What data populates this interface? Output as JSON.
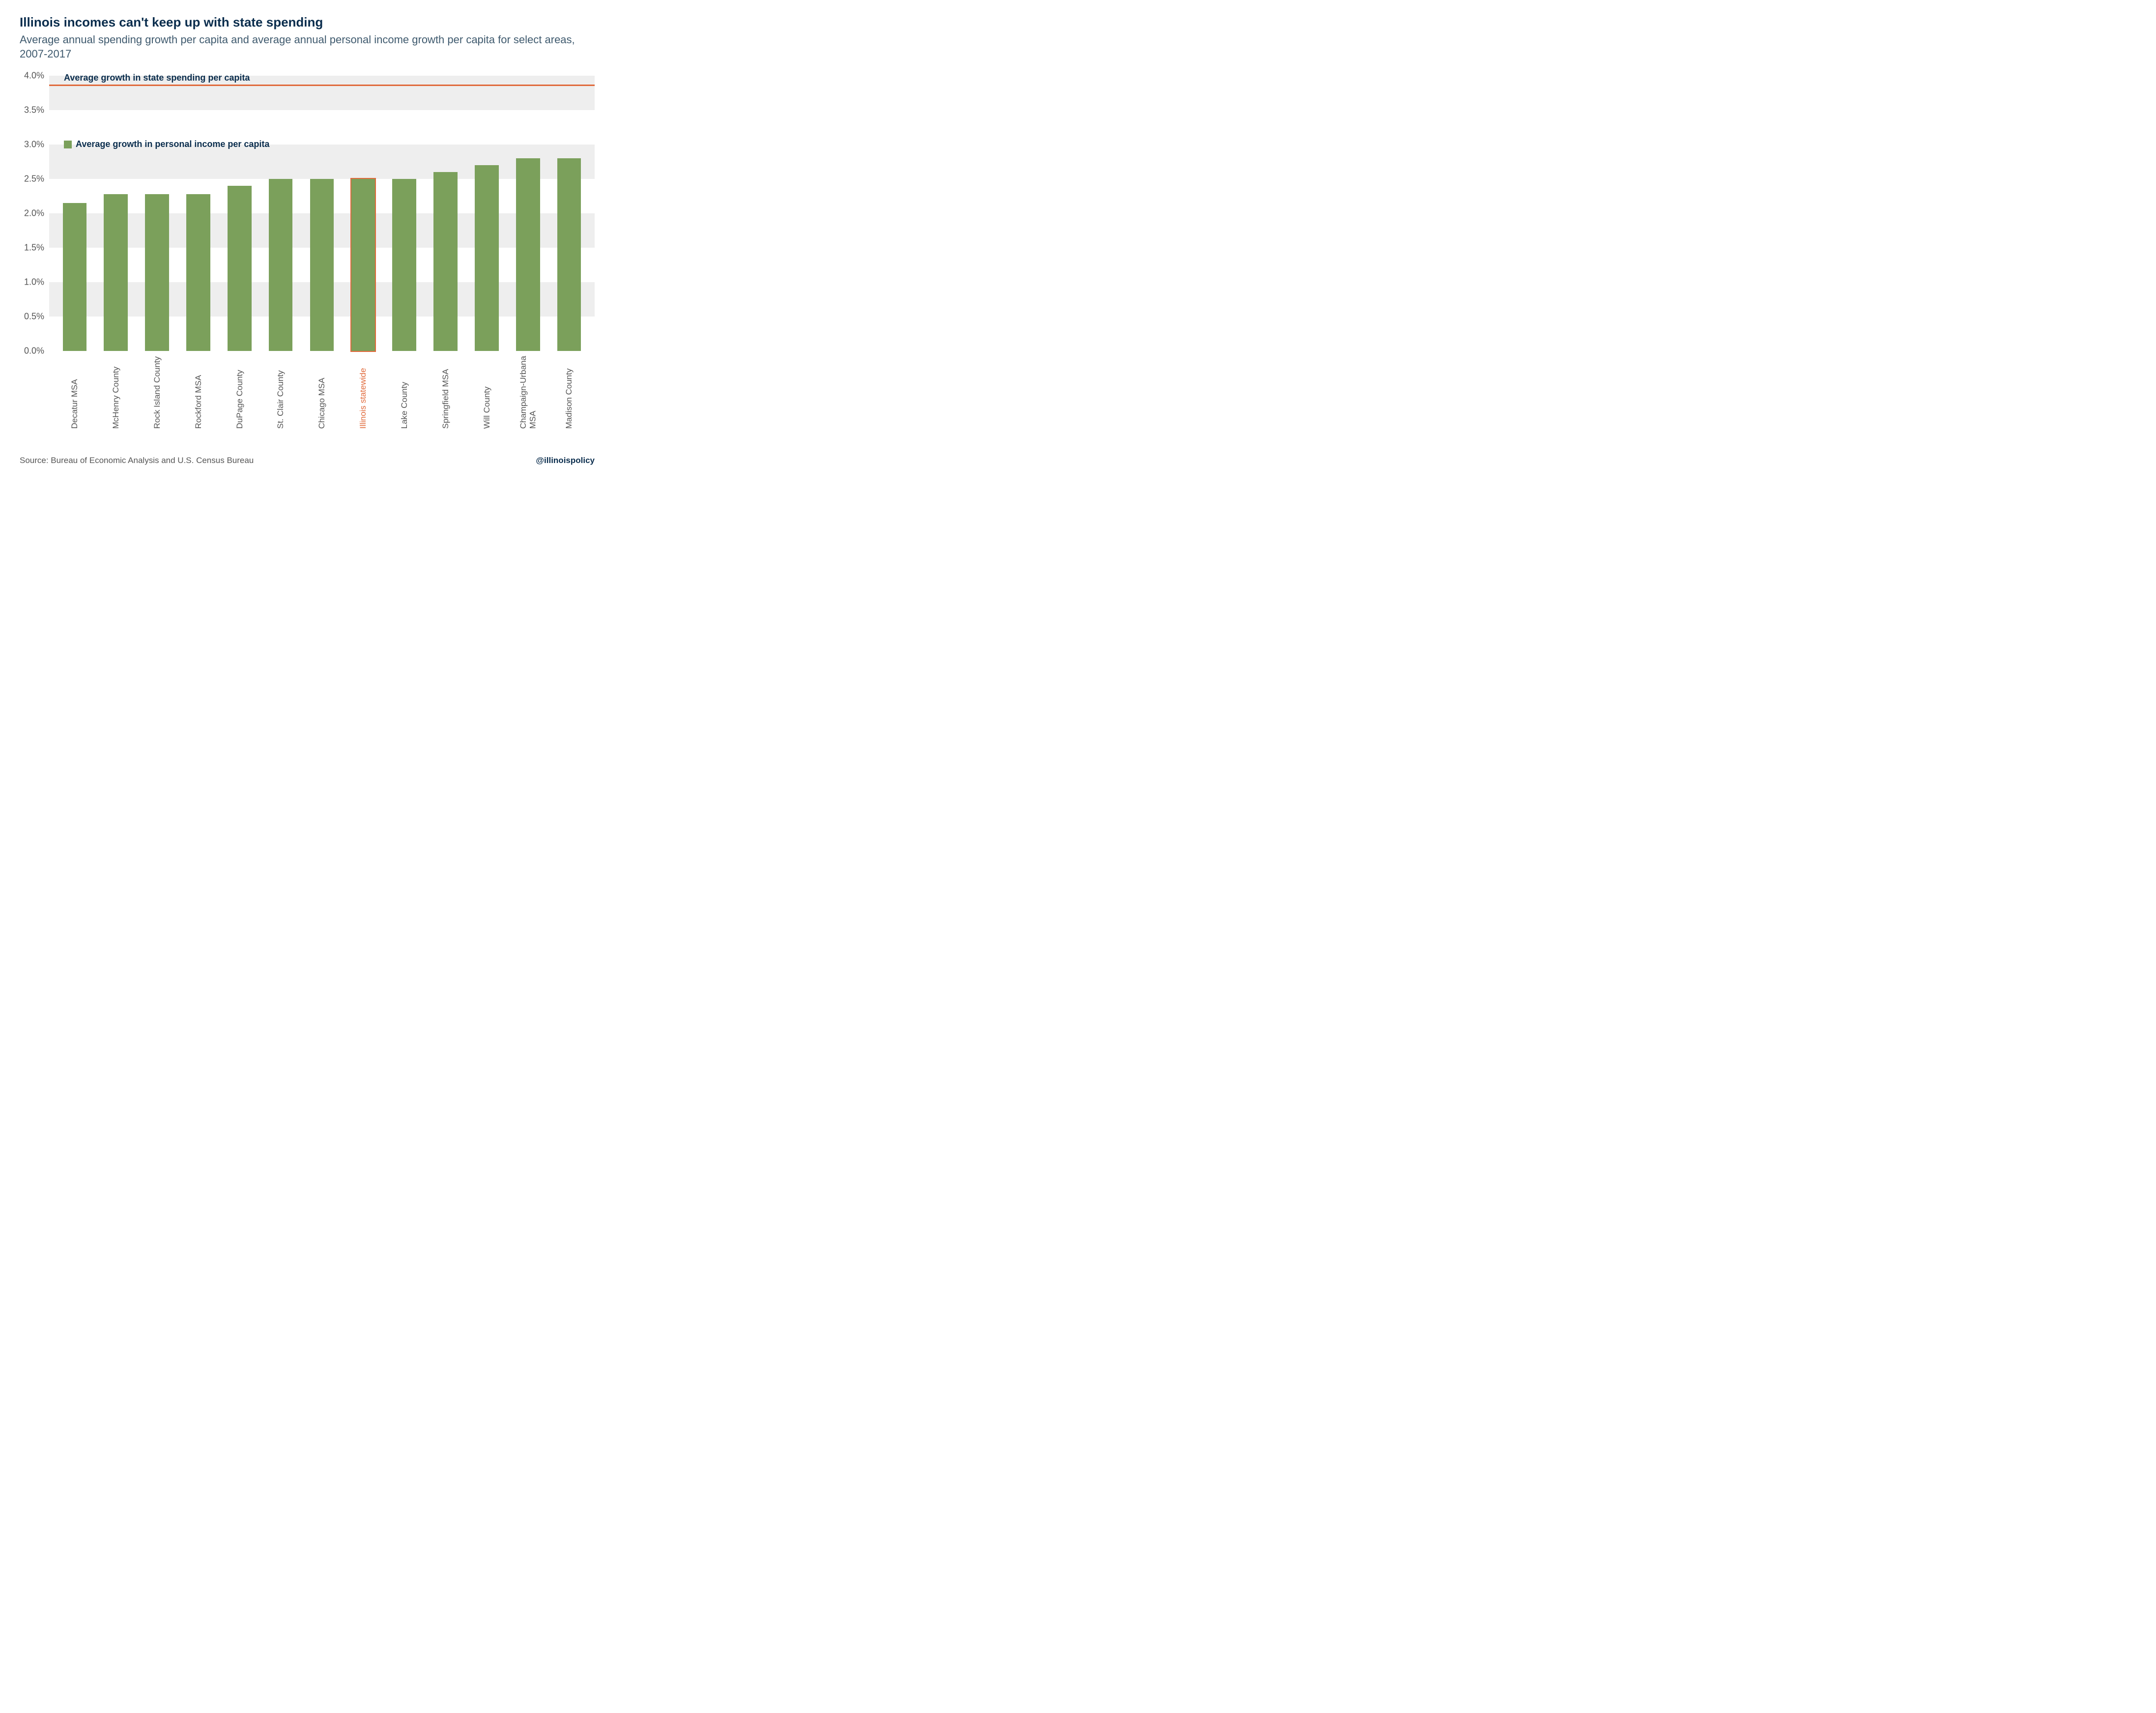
{
  "title": "Illinois incomes can't keep up with state spending",
  "subtitle": "Average annual spending growth per capita and average annual personal income growth per capita for select areas, 2007-2017",
  "colors": {
    "title": "#0a2d4d",
    "subtitle": "#3f5a6e",
    "bar": "#7ba05b",
    "highlight_border": "#e06a3b",
    "highlight_label": "#e06a3b",
    "refline": "#e06a3b",
    "band": "#eeeeee",
    "xlabel": "#555555",
    "footer": "#555555",
    "attribution": "#0a2d4d"
  },
  "chart": {
    "type": "bar",
    "ymin": 0.0,
    "ymax": 4.0,
    "ytick_step": 0.5,
    "ytick_format_pct": true,
    "reference_line": {
      "value": 3.85,
      "label": "Average growth in state spending per capita"
    },
    "legend_label": "Average growth in personal income per capita",
    "categories": [
      {
        "label": "Decatur MSA",
        "value": 2.15,
        "highlight": false
      },
      {
        "label": "McHenry County",
        "value": 2.28,
        "highlight": false
      },
      {
        "label": "Rock Island County",
        "value": 2.28,
        "highlight": false
      },
      {
        "label": "Rockford MSA",
        "value": 2.28,
        "highlight": false
      },
      {
        "label": "DuPage County",
        "value": 2.4,
        "highlight": false
      },
      {
        "label": "St. Clair County",
        "value": 2.5,
        "highlight": false
      },
      {
        "label": "Chicago MSA",
        "value": 2.5,
        "highlight": false
      },
      {
        "label": "Illinois statewide",
        "value": 2.5,
        "highlight": true
      },
      {
        "label": "Lake County",
        "value": 2.5,
        "highlight": false
      },
      {
        "label": "Springfield MSA",
        "value": 2.6,
        "highlight": false
      },
      {
        "label": "Will County",
        "value": 2.7,
        "highlight": false
      },
      {
        "label": "Champaign-Urbana\nMSA",
        "value": 2.8,
        "highlight": false
      },
      {
        "label": "Madison County",
        "value": 2.8,
        "highlight": false
      }
    ]
  },
  "source": "Source:  Bureau of Economic Analysis and U.S. Census Bureau",
  "attribution": "@illinoispolicy"
}
